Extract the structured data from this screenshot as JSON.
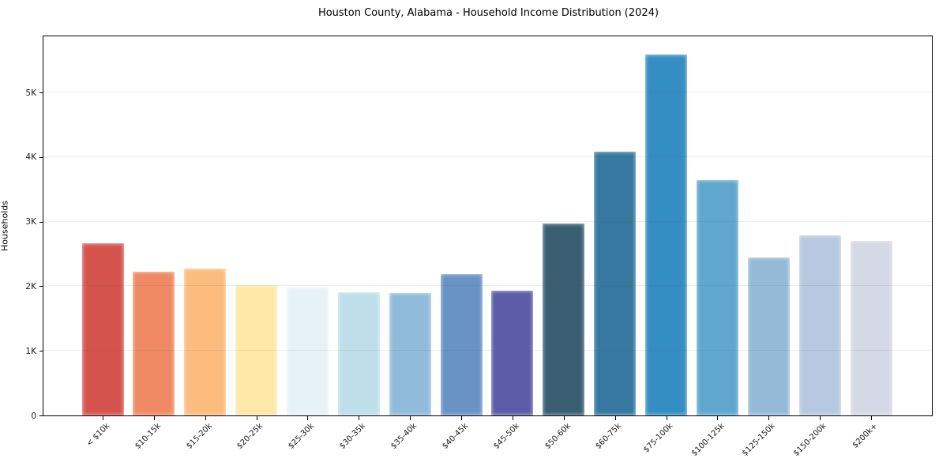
{
  "title": "Houston County, Alabama - Household Income Distribution (2024)",
  "chart_data": {
    "type": "bar",
    "title": "Houston County, Alabama - Household Income Distribution (2024)",
    "xlabel": "",
    "ylabel": "Households",
    "categories": [
      "< $10k",
      "$10-15k",
      "$15-20k",
      "$20-25k",
      "$25-30k",
      "$30-35k",
      "$35-40k",
      "$40-45k",
      "$45-50k",
      "$50-60k",
      "$60-75k",
      "$75-100k",
      "$100-125k",
      "$125-150k",
      "$150-200k",
      "$200k+"
    ],
    "values": [
      2670,
      2230,
      2270,
      2020,
      1980,
      1910,
      1890,
      2190,
      1930,
      2970,
      4080,
      5590,
      3650,
      2450,
      2790,
      2700
    ],
    "bar_colors": [
      "#d5534d",
      "#f08a64",
      "#fbbc7d",
      "#fde8a8",
      "#e7f2f6",
      "#bedfe9",
      "#90bbdb",
      "#6992c5",
      "#5c5ca9",
      "#3a5f73",
      "#36789f",
      "#358ec3",
      "#60a7cd",
      "#94bad8",
      "#b6c9e0",
      "#d5d9e6"
    ],
    "ylim": [
      0,
      5870
    ],
    "yticks": [
      {
        "value": 0,
        "label": "0"
      },
      {
        "value": 1000,
        "label": "1K"
      },
      {
        "value": 2000,
        "label": "2K"
      },
      {
        "value": 3000,
        "label": "3K"
      },
      {
        "value": 4000,
        "label": "4K"
      },
      {
        "value": 5000,
        "label": "5K"
      }
    ],
    "grid": "horizontal",
    "legend": null,
    "background_color": "#ffffff",
    "axis_color": "#000000"
  }
}
